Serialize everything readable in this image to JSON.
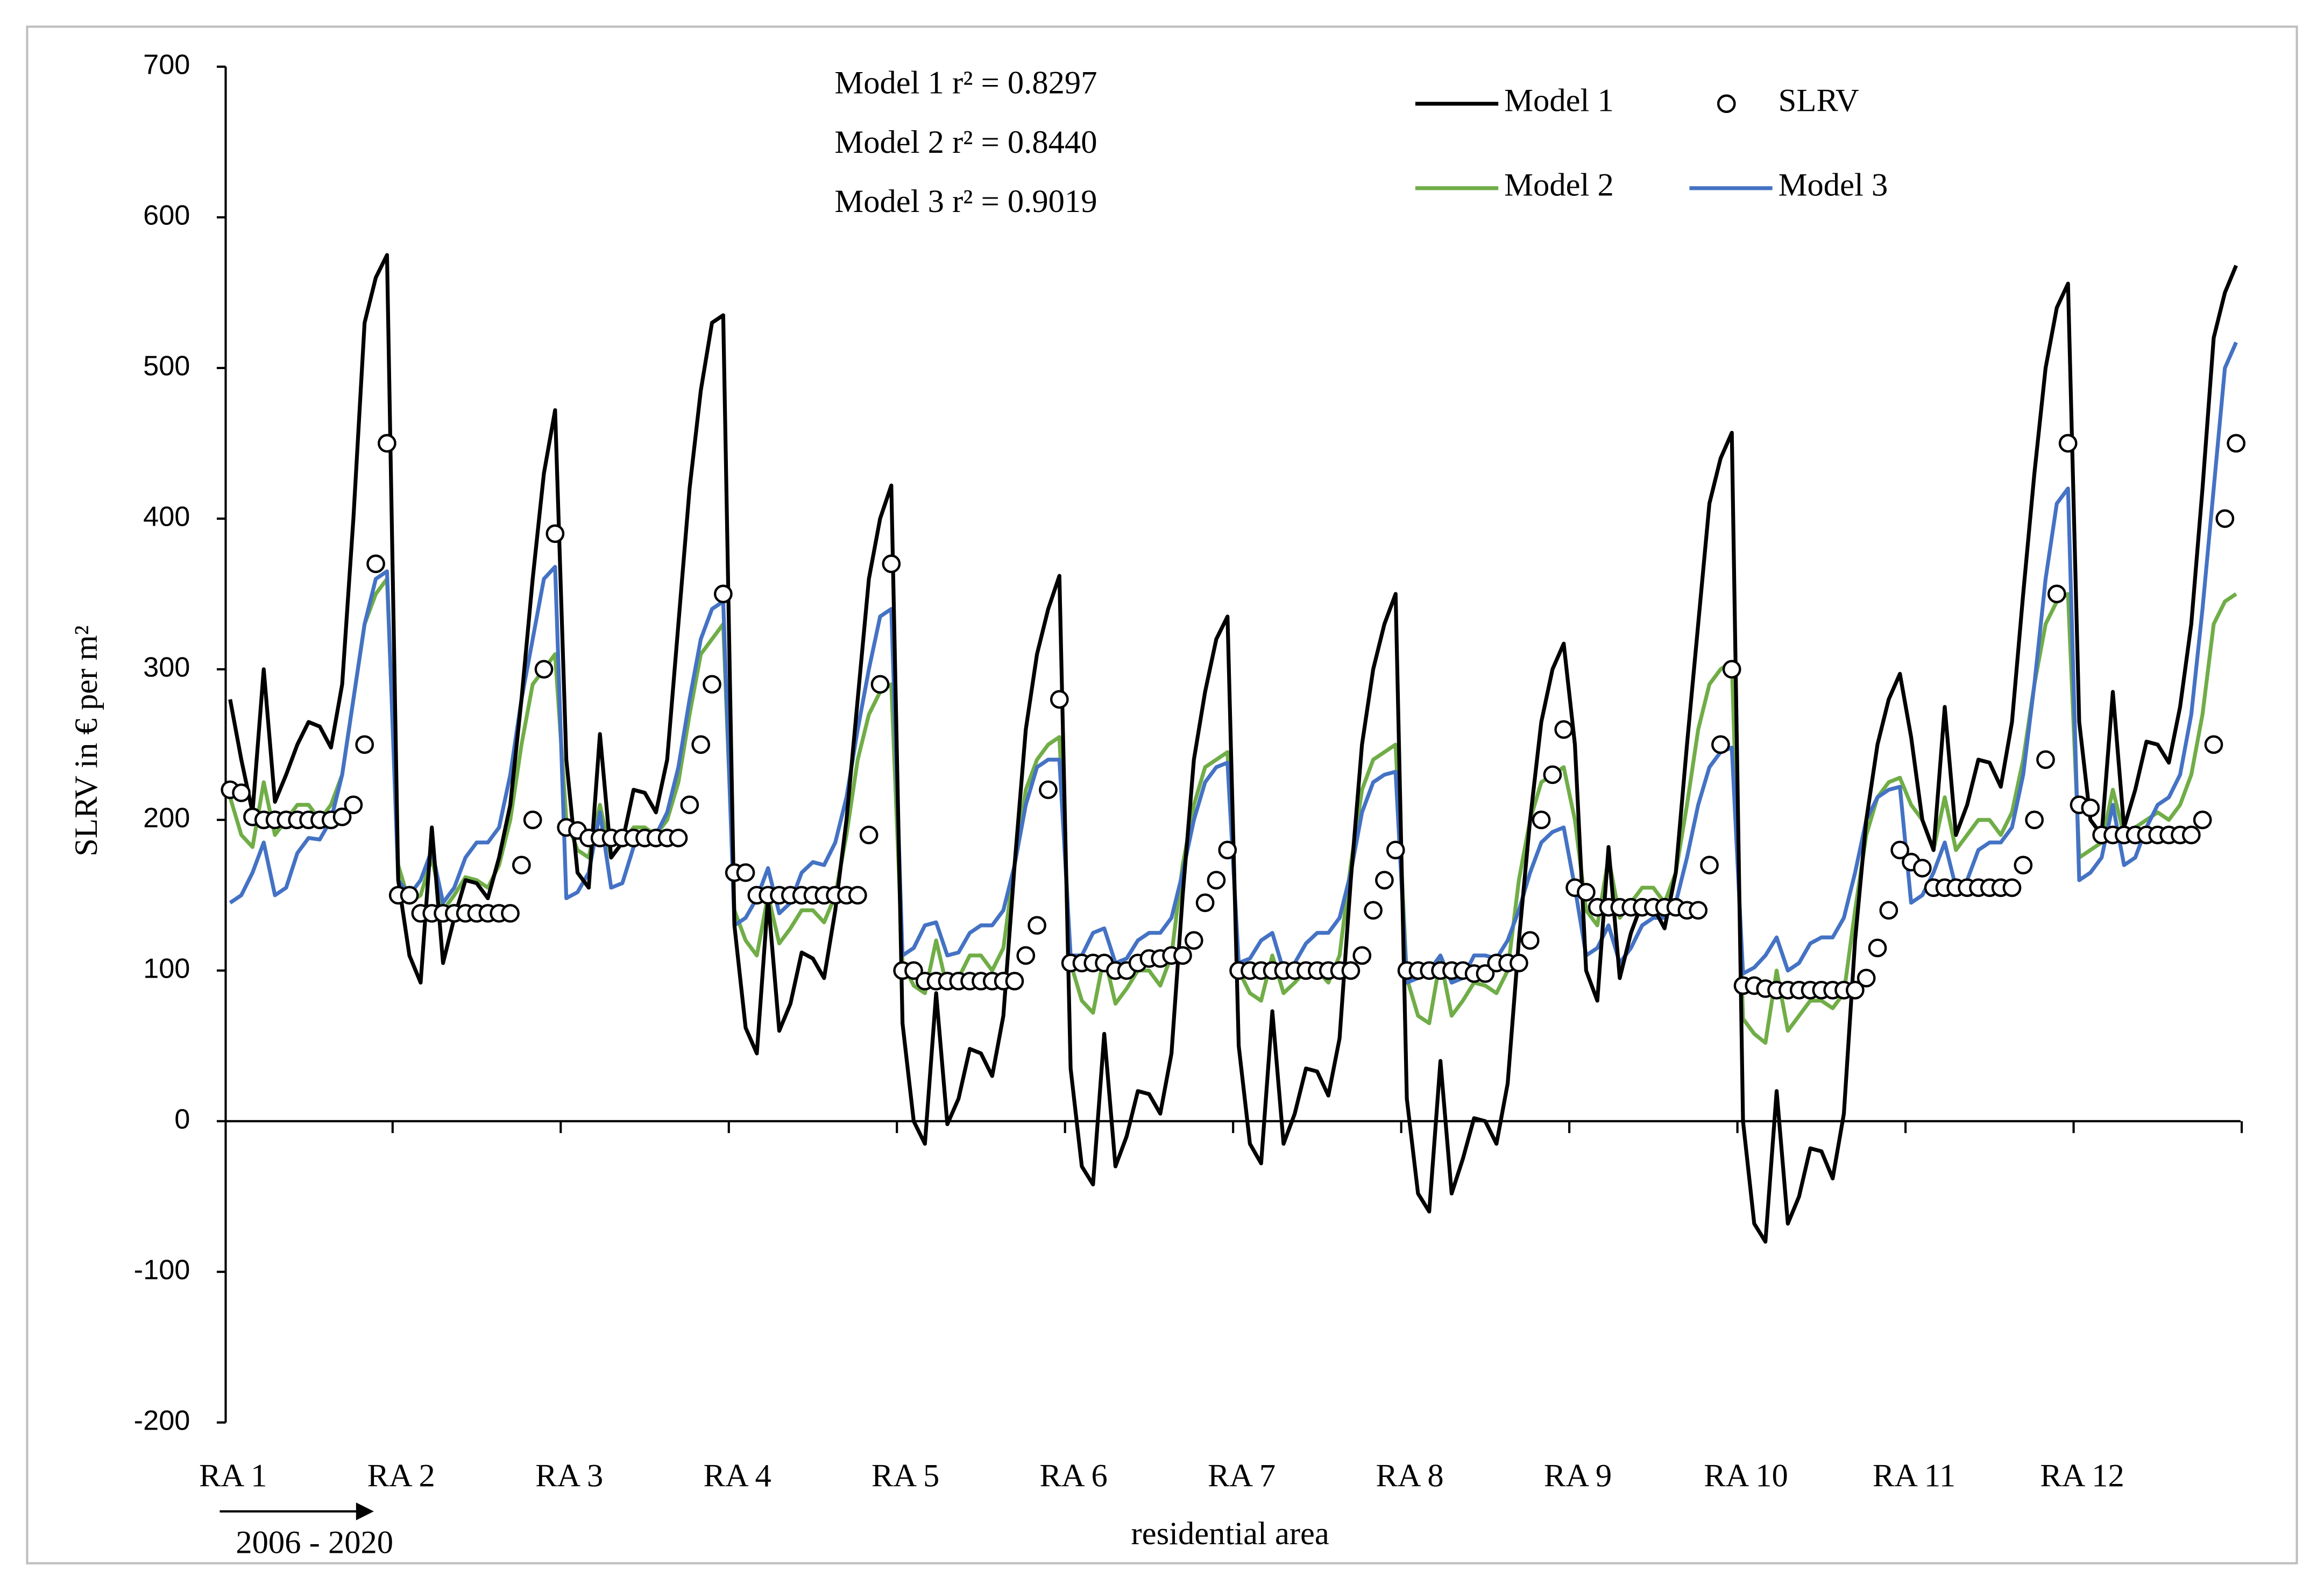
{
  "chart_data": {
    "type": "line",
    "y_label": "SLRV in € per m²",
    "x_label": "residential area",
    "period_label": "2006 - 2020",
    "annotations": [
      "Model 1 r² = 0.8297",
      "Model 2 r² = 0.8440",
      "Model 3 r² = 0.9019"
    ],
    "ylim": [
      -200,
      700
    ],
    "yticks": [
      -200,
      -100,
      0,
      100,
      200,
      300,
      400,
      500,
      600,
      700
    ],
    "categories": [
      "RA 1",
      null,
      null,
      null,
      null,
      null,
      null,
      null,
      null,
      null,
      null,
      null,
      null,
      null,
      null,
      "RA 2",
      null,
      null,
      null,
      null,
      null,
      null,
      null,
      null,
      null,
      null,
      null,
      null,
      null,
      null,
      "RA 3",
      null,
      null,
      null,
      null,
      null,
      null,
      null,
      null,
      null,
      null,
      null,
      null,
      null,
      null,
      "RA 4",
      null,
      null,
      null,
      null,
      null,
      null,
      null,
      null,
      null,
      null,
      null,
      null,
      null,
      null,
      "RA 5",
      null,
      null,
      null,
      null,
      null,
      null,
      null,
      null,
      null,
      null,
      null,
      null,
      null,
      null,
      "RA 6",
      null,
      null,
      null,
      null,
      null,
      null,
      null,
      null,
      null,
      null,
      null,
      null,
      null,
      null,
      "RA 7",
      null,
      null,
      null,
      null,
      null,
      null,
      null,
      null,
      null,
      null,
      null,
      null,
      null,
      null,
      "RA 8",
      null,
      null,
      null,
      null,
      null,
      null,
      null,
      null,
      null,
      null,
      null,
      null,
      null,
      null,
      "RA 9",
      null,
      null,
      null,
      null,
      null,
      null,
      null,
      null,
      null,
      null,
      null,
      null,
      null,
      null,
      "RA 10",
      null,
      null,
      null,
      null,
      null,
      null,
      null,
      null,
      null,
      null,
      null,
      null,
      null,
      null,
      "RA 11",
      null,
      null,
      null,
      null,
      null,
      null,
      null,
      null,
      null,
      null,
      null,
      null,
      null,
      null,
      "RA 12",
      null,
      null,
      null,
      null,
      null,
      null,
      null,
      null,
      null,
      null,
      null,
      null,
      null,
      null
    ],
    "series": [
      {
        "name": "Model 1",
        "color": "#000000",
        "mode": "line",
        "values": [
          280,
          240,
          205,
          300,
          212,
          230,
          250,
          265,
          262,
          248,
          290,
          400,
          530,
          560,
          575,
          160,
          110,
          92,
          195,
          105,
          135,
          160,
          158,
          148,
          175,
          210,
          280,
          360,
          430,
          472,
          240,
          165,
          155,
          257,
          175,
          185,
          220,
          218,
          205,
          240,
          330,
          420,
          485,
          530,
          535,
          130,
          62,
          45,
          148,
          60,
          78,
          112,
          108,
          95,
          140,
          200,
          280,
          360,
          400,
          422,
          65,
          0,
          -15,
          85,
          -2,
          15,
          48,
          45,
          30,
          70,
          170,
          260,
          310,
          340,
          362,
          35,
          -30,
          -42,
          58,
          -30,
          -10,
          20,
          18,
          5,
          45,
          150,
          240,
          285,
          320,
          335,
          50,
          -15,
          -28,
          73,
          -15,
          5,
          35,
          33,
          17,
          55,
          160,
          250,
          300,
          330,
          350,
          15,
          -48,
          -60,
          40,
          -48,
          -25,
          2,
          0,
          -15,
          25,
          120,
          200,
          265,
          300,
          317,
          250,
          100,
          80,
          182,
          95,
          125,
          145,
          142,
          128,
          165,
          250,
          330,
          410,
          440,
          457,
          0,
          -68,
          -80,
          20,
          -68,
          -50,
          -18,
          -20,
          -38,
          5,
          120,
          200,
          250,
          280,
          297,
          255,
          200,
          180,
          275,
          190,
          210,
          240,
          238,
          222,
          265,
          350,
          430,
          500,
          540,
          556,
          265,
          200,
          190,
          285,
          195,
          220,
          252,
          250,
          238,
          275,
          330,
          420,
          520,
          550,
          568
        ]
      },
      {
        "name": "SLRV",
        "color": "#000000",
        "mode": "markers",
        "values": [
          220,
          218,
          202,
          200,
          200,
          200,
          200,
          200,
          200,
          200,
          202,
          210,
          250,
          370,
          450,
          150,
          150,
          138,
          138,
          138,
          138,
          138,
          138,
          138,
          138,
          138,
          170,
          200,
          300,
          390,
          195,
          193,
          188,
          188,
          188,
          188,
          188,
          188,
          188,
          188,
          188,
          210,
          250,
          290,
          350,
          165,
          165,
          150,
          150,
          150,
          150,
          150,
          150,
          150,
          150,
          150,
          150,
          190,
          290,
          370,
          100,
          100,
          93,
          93,
          93,
          93,
          93,
          93,
          93,
          93,
          93,
          110,
          130,
          220,
          280,
          105,
          105,
          105,
          105,
          100,
          100,
          105,
          108,
          108,
          110,
          110,
          120,
          145,
          160,
          180,
          100,
          100,
          100,
          100,
          100,
          100,
          100,
          100,
          100,
          100,
          100,
          110,
          140,
          160,
          180,
          100,
          100,
          100,
          100,
          100,
          100,
          98,
          98,
          105,
          105,
          105,
          120,
          200,
          230,
          260,
          155,
          152,
          142,
          142,
          142,
          142,
          142,
          142,
          142,
          142,
          140,
          140,
          170,
          250,
          300,
          90,
          90,
          88,
          87,
          87,
          87,
          87,
          87,
          87,
          87,
          87,
          95,
          115,
          140,
          180,
          172,
          168,
          155,
          155,
          155,
          155,
          155,
          155,
          155,
          155,
          170,
          200,
          240,
          350,
          450,
          210,
          208,
          190,
          190,
          190,
          190,
          190,
          190,
          190,
          190,
          190,
          200,
          250,
          400,
          450
        ]
      },
      {
        "name": "Model 2",
        "color": "#70ad47",
        "mode": "line",
        "values": [
          215,
          190,
          182,
          225,
          190,
          200,
          210,
          210,
          200,
          210,
          230,
          280,
          330,
          350,
          360,
          170,
          145,
          150,
          175,
          140,
          150,
          162,
          160,
          155,
          170,
          200,
          250,
          290,
          300,
          310,
          200,
          180,
          175,
          210,
          175,
          185,
          195,
          195,
          190,
          200,
          225,
          270,
          310,
          320,
          330,
          140,
          120,
          110,
          150,
          118,
          128,
          140,
          140,
          132,
          150,
          190,
          240,
          270,
          285,
          290,
          105,
          90,
          85,
          120,
          88,
          95,
          110,
          110,
          100,
          115,
          170,
          220,
          240,
          250,
          255,
          105,
          80,
          72,
          110,
          78,
          88,
          100,
          100,
          90,
          110,
          170,
          210,
          235,
          240,
          245,
          100,
          85,
          80,
          110,
          85,
          92,
          100,
          100,
          92,
          110,
          170,
          220,
          240,
          245,
          250,
          95,
          70,
          65,
          108,
          70,
          80,
          92,
          90,
          85,
          100,
          160,
          200,
          225,
          230,
          235,
          200,
          140,
          130,
          175,
          135,
          145,
          155,
          155,
          145,
          165,
          210,
          260,
          290,
          300,
          305,
          68,
          58,
          52,
          100,
          60,
          70,
          80,
          80,
          75,
          85,
          140,
          190,
          215,
          225,
          228,
          210,
          200,
          180,
          215,
          180,
          190,
          200,
          200,
          190,
          205,
          240,
          290,
          330,
          345,
          350,
          175,
          180,
          185,
          220,
          190,
          195,
          200,
          205,
          200,
          210,
          230,
          270,
          330,
          345,
          350
        ]
      },
      {
        "name": "Model 3",
        "color": "#4472c4",
        "mode": "line",
        "values": [
          145,
          150,
          165,
          185,
          150,
          155,
          178,
          188,
          187,
          200,
          230,
          280,
          330,
          360,
          365,
          160,
          150,
          160,
          180,
          145,
          155,
          175,
          185,
          185,
          195,
          230,
          280,
          320,
          360,
          368,
          148,
          152,
          165,
          205,
          155,
          158,
          182,
          190,
          190,
          205,
          235,
          280,
          320,
          340,
          345,
          130,
          135,
          148,
          168,
          138,
          145,
          165,
          172,
          170,
          185,
          215,
          260,
          300,
          335,
          340,
          110,
          115,
          130,
          132,
          110,
          112,
          125,
          130,
          130,
          140,
          170,
          210,
          235,
          240,
          240,
          110,
          110,
          125,
          128,
          105,
          108,
          120,
          125,
          125,
          135,
          165,
          200,
          225,
          235,
          238,
          105,
          108,
          120,
          125,
          100,
          105,
          118,
          125,
          125,
          135,
          165,
          205,
          225,
          230,
          232,
          92,
          95,
          100,
          110,
          92,
          95,
          110,
          110,
          108,
          120,
          140,
          165,
          185,
          192,
          195,
          155,
          110,
          115,
          130,
          105,
          115,
          130,
          135,
          135,
          145,
          175,
          210,
          235,
          245,
          248,
          98,
          102,
          110,
          122,
          100,
          105,
          118,
          122,
          122,
          135,
          165,
          200,
          215,
          220,
          222,
          145,
          150,
          165,
          185,
          155,
          160,
          180,
          185,
          185,
          195,
          230,
          290,
          360,
          410,
          420,
          160,
          165,
          175,
          210,
          170,
          175,
          195,
          210,
          215,
          230,
          270,
          340,
          420,
          500,
          517
        ]
      }
    ]
  }
}
